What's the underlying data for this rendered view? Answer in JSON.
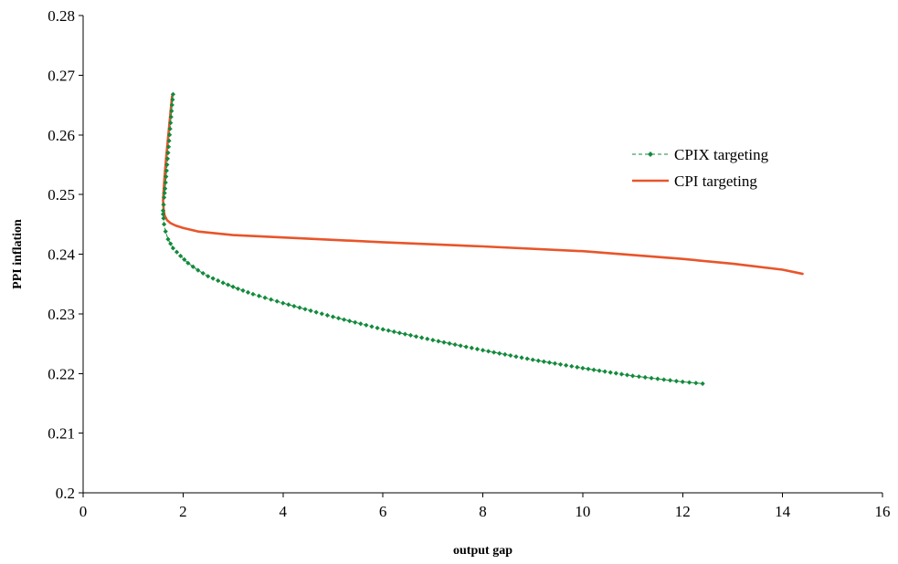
{
  "chart_data": {
    "type": "line",
    "xlabel": "output gap",
    "ylabel": "PPI inflation",
    "xlim": [
      0,
      16
    ],
    "ylim": [
      0.2,
      0.28
    ],
    "x_ticks": [
      "0",
      "2",
      "4",
      "6",
      "8",
      "10",
      "12",
      "14",
      "16"
    ],
    "y_ticks": [
      "0.2",
      "0.21",
      "0.22",
      "0.23",
      "0.24",
      "0.25",
      "0.26",
      "0.27",
      "0.28"
    ],
    "grid": false,
    "legend_position": "right",
    "series": [
      {
        "name": "CPIX targeting",
        "style": "dashed-with-diamond-markers",
        "color": "#138a3c",
        "x": [
          1.8,
          1.78,
          1.76,
          1.74,
          1.72,
          1.7,
          1.68,
          1.66,
          1.64,
          1.62,
          1.61,
          1.6,
          1.6,
          1.61,
          1.62,
          1.65,
          1.7,
          1.8,
          1.95,
          2.1,
          2.3,
          2.5,
          2.8,
          3.1,
          3.4,
          4.0,
          5.0,
          6.0,
          7.0,
          8.0,
          9.0,
          10.0,
          11.0,
          12.0,
          12.4
        ],
        "y": [
          0.2668,
          0.265,
          0.263,
          0.261,
          0.259,
          0.257,
          0.255,
          0.253,
          0.251,
          0.2495,
          0.2483,
          0.2473,
          0.2467,
          0.246,
          0.245,
          0.2438,
          0.2425,
          0.241,
          0.2397,
          0.2385,
          0.2373,
          0.2363,
          0.2352,
          0.2342,
          0.2333,
          0.2318,
          0.2295,
          0.2274,
          0.2256,
          0.2239,
          0.2223,
          0.2209,
          0.2196,
          0.2186,
          0.2183
        ]
      },
      {
        "name": "CPI targeting",
        "style": "solid",
        "color": "#e8552a",
        "x": [
          1.78,
          1.74,
          1.7,
          1.66,
          1.63,
          1.61,
          1.6,
          1.61,
          1.63,
          1.68,
          1.75,
          1.85,
          2.0,
          2.3,
          3.0,
          4.0,
          6.0,
          8.0,
          10.0,
          12.0,
          13.0,
          14.0,
          14.4
        ],
        "y": [
          0.2665,
          0.263,
          0.2595,
          0.256,
          0.253,
          0.2505,
          0.249,
          0.2476,
          0.2465,
          0.2457,
          0.2452,
          0.2448,
          0.2444,
          0.2438,
          0.2432,
          0.2428,
          0.242,
          0.2413,
          0.2405,
          0.2392,
          0.2384,
          0.2374,
          0.2367
        ]
      }
    ]
  }
}
